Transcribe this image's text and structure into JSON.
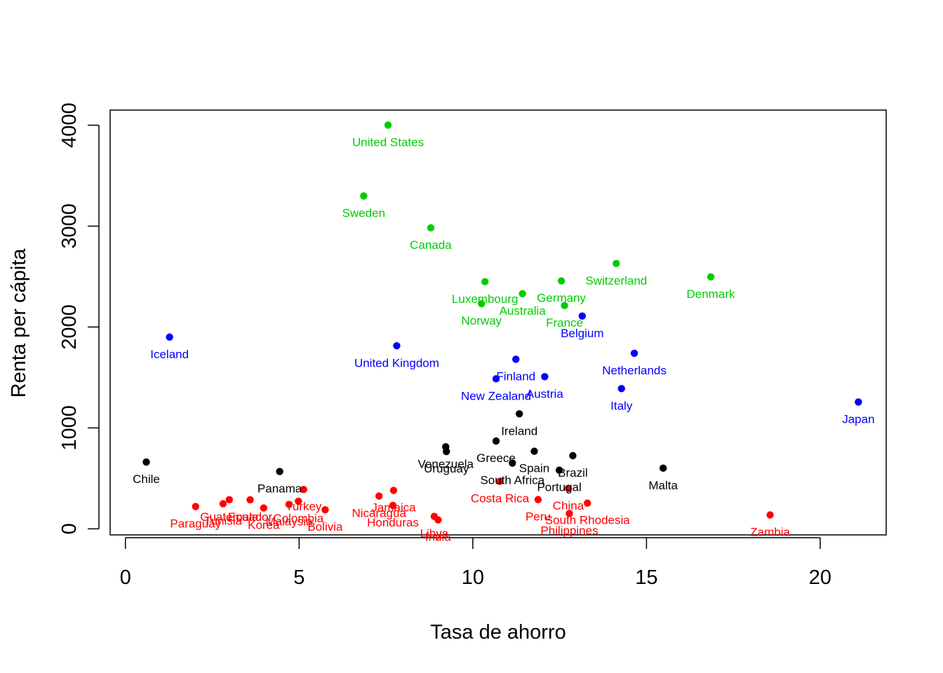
{
  "chart_data": {
    "type": "scatter",
    "title": "",
    "xlabel": "Tasa de ahorro",
    "ylabel": "Renta per cápita",
    "xlim": [
      -0.44,
      21.9
    ],
    "ylim": [
      -60,
      4150
    ],
    "xticks": [
      0,
      5,
      10,
      15,
      20
    ],
    "yticks": [
      0,
      1000,
      2000,
      3000,
      4000
    ],
    "grid": false,
    "legend": "none",
    "colors": {
      "black": "#000000",
      "red": "#ff0000",
      "green": "#00cd00",
      "blue": "#0000ff"
    },
    "points": [
      {
        "name": "United States",
        "x": 7.56,
        "y": 4001,
        "color": "green"
      },
      {
        "name": "Sweden",
        "x": 6.86,
        "y": 3299,
        "color": "green"
      },
      {
        "name": "Canada",
        "x": 8.79,
        "y": 2983,
        "color": "green"
      },
      {
        "name": "Switzerland",
        "x": 14.13,
        "y": 2630,
        "color": "green"
      },
      {
        "name": "Denmark",
        "x": 16.85,
        "y": 2497,
        "color": "green"
      },
      {
        "name": "Luxembourg",
        "x": 10.35,
        "y": 2449,
        "color": "green"
      },
      {
        "name": "Germany",
        "x": 12.55,
        "y": 2457,
        "color": "green"
      },
      {
        "name": "Australia",
        "x": 11.43,
        "y": 2330,
        "color": "green"
      },
      {
        "name": "Norway",
        "x": 10.25,
        "y": 2231,
        "color": "green"
      },
      {
        "name": "France",
        "x": 12.64,
        "y": 2213,
        "color": "green"
      },
      {
        "name": "Belgium",
        "x": 13.15,
        "y": 2109,
        "color": "blue"
      },
      {
        "name": "Iceland",
        "x": 1.27,
        "y": 1900,
        "color": "blue"
      },
      {
        "name": "United Kingdom",
        "x": 7.81,
        "y": 1814,
        "color": "blue"
      },
      {
        "name": "Netherlands",
        "x": 14.65,
        "y": 1740,
        "color": "blue"
      },
      {
        "name": "Finland",
        "x": 11.24,
        "y": 1681,
        "color": "blue"
      },
      {
        "name": "Austria",
        "x": 12.07,
        "y": 1508,
        "color": "blue"
      },
      {
        "name": "New Zealand",
        "x": 10.67,
        "y": 1487,
        "color": "blue"
      },
      {
        "name": "Italy",
        "x": 14.28,
        "y": 1390,
        "color": "blue"
      },
      {
        "name": "Japan",
        "x": 21.1,
        "y": 1257,
        "color": "blue"
      },
      {
        "name": "Ireland",
        "x": 11.34,
        "y": 1140,
        "color": "black"
      },
      {
        "name": "Greece",
        "x": 10.67,
        "y": 870,
        "color": "black"
      },
      {
        "name": "Venezuela",
        "x": 9.22,
        "y": 813,
        "color": "black"
      },
      {
        "name": "Uruguay",
        "x": 9.24,
        "y": 766,
        "color": "black"
      },
      {
        "name": "Spain",
        "x": 11.77,
        "y": 769,
        "color": "black"
      },
      {
        "name": "Brazil",
        "x": 12.88,
        "y": 725,
        "color": "black"
      },
      {
        "name": "South Africa",
        "x": 11.14,
        "y": 652,
        "color": "black"
      },
      {
        "name": "Chile",
        "x": 0.6,
        "y": 662,
        "color": "black"
      },
      {
        "name": "Malta",
        "x": 15.48,
        "y": 601,
        "color": "black"
      },
      {
        "name": "Portugal",
        "x": 12.49,
        "y": 581,
        "color": "black"
      },
      {
        "name": "Panama",
        "x": 4.44,
        "y": 568,
        "color": "black"
      },
      {
        "name": "Costa Rica",
        "x": 10.78,
        "y": 471,
        "color": "red"
      },
      {
        "name": "Turkey",
        "x": 5.13,
        "y": 390,
        "color": "red"
      },
      {
        "name": "Nicaragua",
        "x": 7.3,
        "y": 325,
        "color": "red"
      },
      {
        "name": "Jamaica",
        "x": 7.72,
        "y": 381,
        "color": "red"
      },
      {
        "name": "Colombia",
        "x": 4.98,
        "y": 274,
        "color": "red"
      },
      {
        "name": "Peru",
        "x": 11.88,
        "y": 290,
        "color": "red"
      },
      {
        "name": "Ecuador",
        "x": 3.59,
        "y": 288,
        "color": "red"
      },
      {
        "name": "Guatemala",
        "x": 2.99,
        "y": 289,
        "color": "red"
      },
      {
        "name": "South Rhodesia",
        "x": 13.3,
        "y": 255,
        "color": "red"
      },
      {
        "name": "Tunisia",
        "x": 2.81,
        "y": 249,
        "color": "red"
      },
      {
        "name": "Malaysia",
        "x": 4.71,
        "y": 242,
        "color": "red"
      },
      {
        "name": "Honduras",
        "x": 7.7,
        "y": 232,
        "color": "red"
      },
      {
        "name": "Paraguay",
        "x": 2.02,
        "y": 221,
        "color": "red"
      },
      {
        "name": "Korea",
        "x": 3.98,
        "y": 207,
        "color": "red"
      },
      {
        "name": "Bolivia",
        "x": 5.75,
        "y": 189,
        "color": "red"
      },
      {
        "name": "China",
        "x": 12.75,
        "y": 400,
        "color": "red"
      },
      {
        "name": "Philippines",
        "x": 12.78,
        "y": 152,
        "color": "red"
      },
      {
        "name": "Zambia",
        "x": 18.56,
        "y": 138,
        "color": "red"
      },
      {
        "name": "Libya",
        "x": 8.89,
        "y": 123,
        "color": "red"
      },
      {
        "name": "India",
        "x": 9.0,
        "y": 89,
        "color": "red"
      }
    ]
  }
}
